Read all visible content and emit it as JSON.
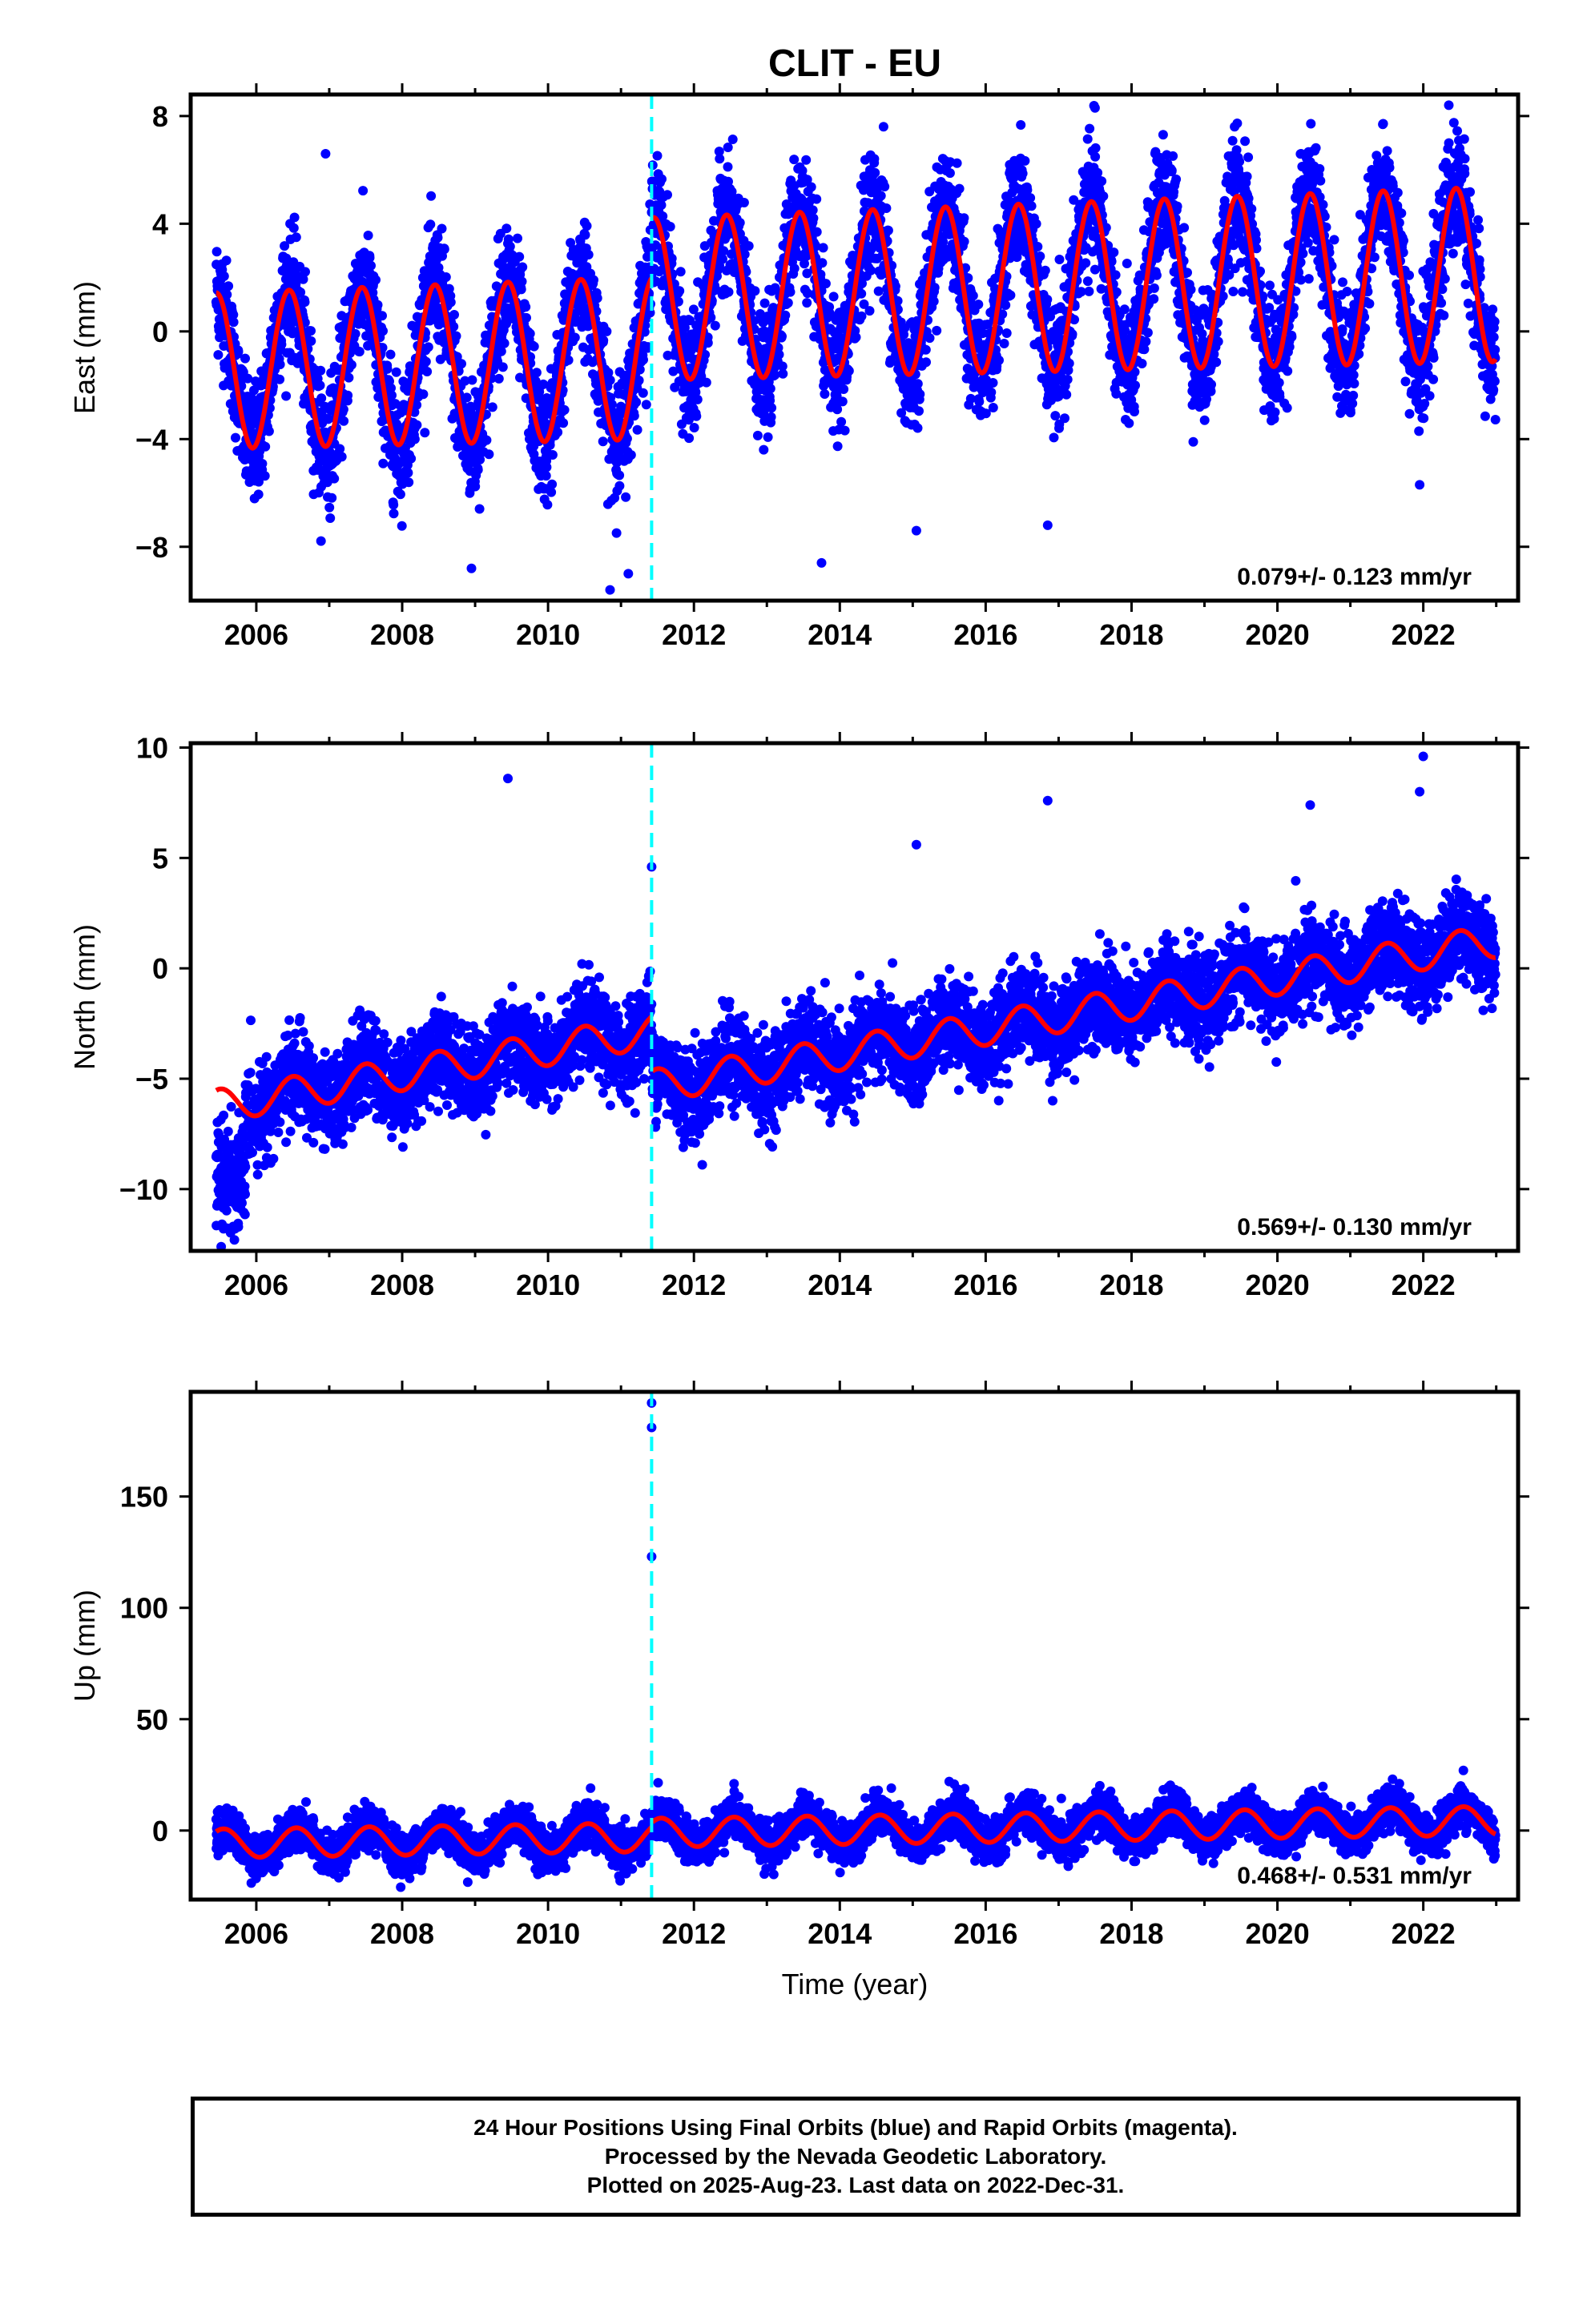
{
  "figure_title": "CLIT - EU",
  "x_axis_label": "Time (year)",
  "footer": {
    "line1": "24 Hour Positions Using Final Orbits (blue) and Rapid Orbits (magenta).",
    "line2": "Processed by the Nevada Geodetic Laboratory.",
    "line3": "Plotted on 2025-Aug-23. Last data on 2022-Dec-31."
  },
  "colors": {
    "observations": "#0000ff",
    "model": "#ff0000",
    "equipment_change": "#00ffff",
    "frame": "#000000"
  },
  "chart_data": [
    {
      "type": "scatter",
      "component": "east",
      "ylabel": "East (mm)",
      "xlim": [
        2005.1,
        2023.3
      ],
      "ylim": [
        -10,
        8.8
      ],
      "yticks": [
        -8,
        -4,
        0,
        4,
        8
      ],
      "xticks": [
        2006,
        2008,
        2010,
        2012,
        2014,
        2016,
        2018,
        2020,
        2022
      ],
      "data_start": 2005.45,
      "data_end": 2022.99,
      "equipment_change_year": 2011.42,
      "rate_text": "0.079+/- 0.123 mm/yr",
      "model": {
        "offset_before": -1.5,
        "offset_after": 0.7,
        "trend_per_yr": 0.079,
        "annual_amplitude": 2.9,
        "annual_peak_year_fraction": 0.45,
        "amplitude_growth_per_yr": 0.02
      },
      "scatter_sigma": 1.1,
      "outliers": [
        [
          2010.85,
          -9.6
        ],
        [
          2011.1,
          -9.0
        ],
        [
          2008.95,
          -8.8
        ],
        [
          2013.75,
          -8.6
        ],
        [
          2014.6,
          7.6
        ],
        [
          2017.5,
          8.3
        ],
        [
          2022.35,
          8.4
        ],
        [
          2006.95,
          6.6
        ],
        [
          2005.95,
          -4.4
        ],
        [
          2007.05,
          -4.9
        ],
        [
          2015.05,
          -7.4
        ],
        [
          2016.85,
          -7.2
        ],
        [
          2021.95,
          -5.7
        ]
      ]
    },
    {
      "type": "scatter",
      "component": "north",
      "ylabel": "North (mm)",
      "xlim": [
        2005.1,
        2023.3
      ],
      "ylim": [
        -12.8,
        10.2
      ],
      "yticks": [
        -10,
        -5,
        0,
        5,
        10
      ],
      "xticks": [
        2006,
        2008,
        2010,
        2012,
        2014,
        2016,
        2018,
        2020,
        2022
      ],
      "data_start": 2005.45,
      "data_end": 2022.99,
      "equipment_change_year": 2011.42,
      "rate_text": "0.569+/- 0.130 mm/yr",
      "model": {
        "offset_before": -6.5,
        "offset_after": -9.0,
        "trend_per_yr": 0.569,
        "annual_amplitude": 0.75,
        "annual_peak_year_fraction": 0.5,
        "amplitude_growth_per_yr": 0.0
      },
      "scatter_sigma": 1.0,
      "early_segment": {
        "start": 2005.45,
        "end": 2005.85,
        "mean": -9.6,
        "sigma": 1.3
      },
      "outliers": [
        [
          2009.45,
          8.6
        ],
        [
          2022.0,
          9.6
        ],
        [
          2016.85,
          7.6
        ],
        [
          2020.45,
          7.4
        ],
        [
          2021.95,
          8.0
        ],
        [
          2008.05,
          -6.3
        ],
        [
          2012.9,
          -6.2
        ],
        [
          2015.95,
          -5.2
        ],
        [
          2011.42,
          4.6
        ],
        [
          2005.7,
          -12.3
        ],
        [
          2005.55,
          -11.8
        ],
        [
          2015.05,
          5.6
        ]
      ]
    },
    {
      "type": "scatter",
      "component": "up",
      "ylabel": "Up (mm)",
      "xlim": [
        2005.1,
        2023.3
      ],
      "ylim": [
        -31,
        197
      ],
      "yticks": [
        0,
        50,
        100,
        150
      ],
      "xticks": [
        2006,
        2008,
        2010,
        2012,
        2014,
        2016,
        2018,
        2020,
        2022
      ],
      "data_start": 2005.45,
      "data_end": 2022.99,
      "equipment_change_year": 2011.42,
      "rate_text": "0.468+/- 0.531 mm/yr",
      "model": {
        "offset_before": -6.0,
        "offset_after": -4.0,
        "trend_per_yr": 0.468,
        "annual_amplitude": 6.5,
        "annual_peak_year_fraction": 0.55,
        "amplitude_growth_per_yr": 0.0
      },
      "scatter_sigma": 4.5,
      "outliers": [
        [
          2011.42,
          192
        ],
        [
          2011.42,
          181
        ],
        [
          2011.42,
          123
        ],
        [
          2022.55,
          27
        ],
        [
          2015.5,
          22
        ],
        [
          2012.55,
          21
        ]
      ]
    }
  ]
}
